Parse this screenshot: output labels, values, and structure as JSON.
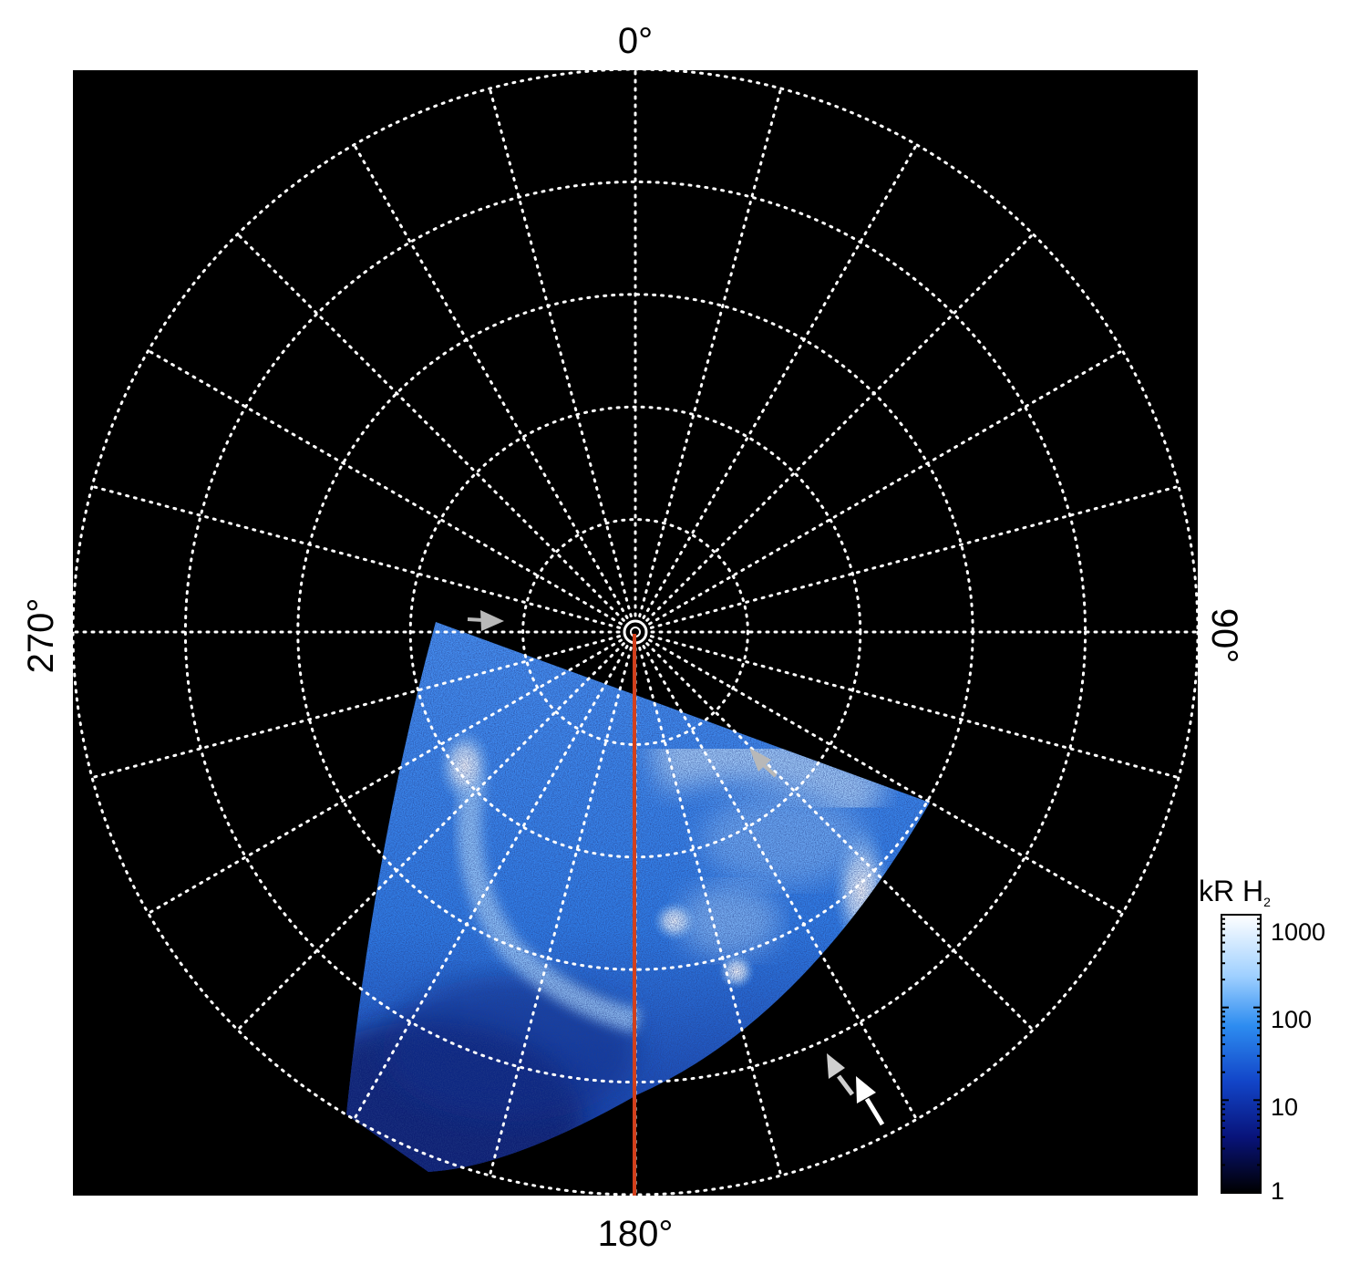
{
  "labels": {
    "top": "0°",
    "bottom": "180°",
    "left": "270°",
    "right": "90°"
  },
  "colorbar": {
    "title": "kR H",
    "title_subscript": "2",
    "ticks": [
      "1000",
      "100",
      "10",
      "1"
    ]
  },
  "colors": {
    "background": "#000000",
    "grid": "#ffffff",
    "meridian_line": "#d2401c",
    "emission_dark": "#0a1a70",
    "emission_mid": "#2f7df0",
    "emission_bright": "#eaf4ff",
    "arrow_white": "#ffffff",
    "arrow_grey": "#b8b8b8"
  },
  "grid": {
    "meridian_count": 24,
    "latitude_ring_count": 5
  }
}
